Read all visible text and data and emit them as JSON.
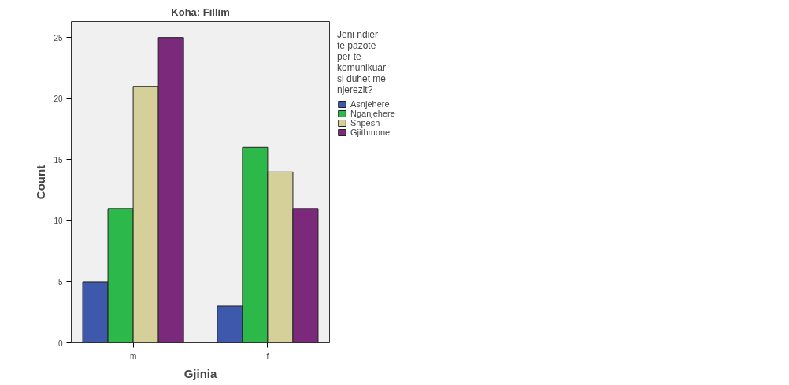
{
  "chart_data": {
    "type": "bar",
    "title": "Koha: Fillim",
    "xlabel": "Gjinia",
    "ylabel": "Count",
    "legend_title": "Jeni ndier te pazote per te komunikuar si duhet me njerezit?",
    "categories": [
      "m",
      "f"
    ],
    "series": [
      {
        "name": "Asnjehere",
        "color": "#3e58ac",
        "values": [
          5,
          3
        ]
      },
      {
        "name": "Nganjehere",
        "color": "#2db84a",
        "values": [
          11,
          16
        ]
      },
      {
        "name": "Shpesh",
        "color": "#d5cf9a",
        "values": [
          21,
          14
        ]
      },
      {
        "name": "Gjithmone",
        "color": "#7b2a7b",
        "values": [
          25,
          11
        ]
      }
    ],
    "ylim": [
      0,
      26.3
    ],
    "yticks": [
      0,
      5,
      10,
      15,
      20,
      25
    ],
    "grid": false,
    "legend": "right"
  }
}
